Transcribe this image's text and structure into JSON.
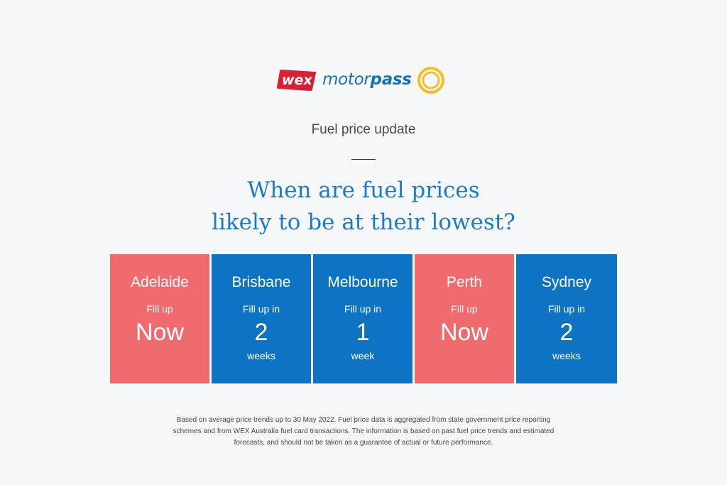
{
  "brand": {
    "wex_text": "wex",
    "motor_text": "motor",
    "pass_text": "pass",
    "wex_color": "#d71f36",
    "motorpass_color": "#1a6fb5",
    "ring_color": "#f6bd27",
    "ring_icon": "sun-ring-icon"
  },
  "header": {
    "subtitle": "Fuel price update",
    "headline_line1": "When are fuel prices",
    "headline_line2": "likely to be at their lowest?"
  },
  "colors": {
    "fill_now": "#f06b6d",
    "fill_later": "#0d73c2",
    "headline": "#1f7ac4",
    "background": "#f6f7f9"
  },
  "cities": [
    {
      "name": "Adelaide",
      "prefix": "Fill up",
      "value": "Now",
      "unit": "",
      "status": "now"
    },
    {
      "name": "Brisbane",
      "prefix": "Fill up in",
      "value": "2",
      "unit": "weeks",
      "status": "later"
    },
    {
      "name": "Melbourne",
      "prefix": "Fill up in",
      "value": "1",
      "unit": "week",
      "status": "later"
    },
    {
      "name": "Perth",
      "prefix": "Fill up",
      "value": "Now",
      "unit": "",
      "status": "now"
    },
    {
      "name": "Sydney",
      "prefix": "Fill up in",
      "value": "2",
      "unit": "weeks",
      "status": "later"
    }
  ],
  "footnote": {
    "line1": "Based on average price trends up to 30 May 2022. Fuel price data is aggregated from state government price reporting",
    "line2": "schemes and from WEX Australia fuel card transactions. The information is based on past fuel price trends and estimated",
    "line3": "forecasts, and should not be taken as a guarantee of actual or future performance."
  }
}
